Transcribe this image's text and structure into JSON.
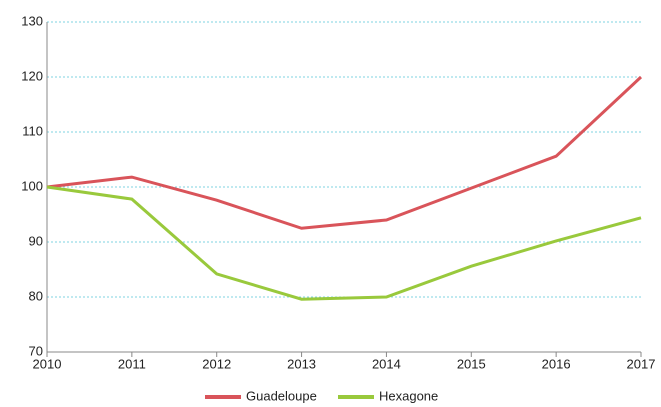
{
  "chart_data": {
    "type": "line",
    "x": [
      2010,
      2011,
      2012,
      2013,
      2014,
      2015,
      2016,
      2017
    ],
    "xlim": [
      2010,
      2017
    ],
    "xticks": [
      2010,
      2011,
      2012,
      2013,
      2014,
      2015,
      2016,
      2017
    ],
    "ylim": [
      70,
      130
    ],
    "yticks": [
      70,
      80,
      90,
      100,
      110,
      120,
      130
    ],
    "grid": true,
    "legend": "bottom",
    "series": [
      {
        "name": "Guadeloupe",
        "color": "#d9545a",
        "values": [
          100,
          101.8,
          97.6,
          92.5,
          94,
          99.8,
          105.6,
          120
        ]
      },
      {
        "name": "Hexagone",
        "color": "#99c93c",
        "values": [
          100,
          97.8,
          84.2,
          79.6,
          80,
          85.6,
          90.2,
          94.4
        ]
      }
    ]
  }
}
